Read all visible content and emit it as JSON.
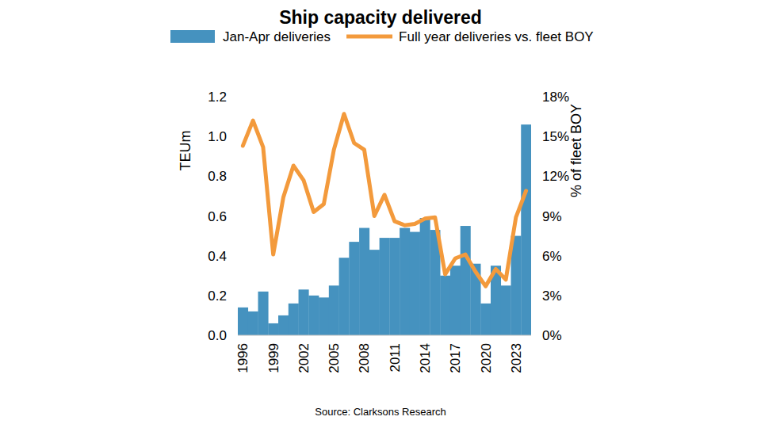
{
  "chart_data": {
    "type": "bar",
    "title": "Ship capacity delivered",
    "y_label": "TEUm",
    "y2_label": "% of fleet BOY",
    "source": "Source: Clarksons Research",
    "legend": "top",
    "grid": false,
    "categories": [
      "1996",
      null,
      null,
      "1999",
      null,
      null,
      "2002",
      null,
      null,
      "2005",
      null,
      null,
      "2008",
      null,
      null,
      "2011",
      null,
      null,
      "2014",
      null,
      null,
      "2017",
      null,
      null,
      "2020",
      null,
      null,
      "2023",
      null
    ],
    "series": [
      {
        "name": "Jan-Apr deliveries",
        "type": "bar",
        "color": "#4592bf",
        "values": [
          0.14,
          0.12,
          0.22,
          0.06,
          0.1,
          0.16,
          0.23,
          0.2,
          0.19,
          0.25,
          0.39,
          0.47,
          0.54,
          0.43,
          0.49,
          0.49,
          0.54,
          0.52,
          0.59,
          0.53,
          0.3,
          0.35,
          0.55,
          0.36,
          0.16,
          0.35,
          0.25,
          0.5,
          1.06
        ]
      },
      {
        "name": "Full year deliveries vs. fleet BOY",
        "type": "line",
        "axis": "y2",
        "color": "#f39a3c",
        "values": [
          14.3,
          16.2,
          14.2,
          6.1,
          10.4,
          12.8,
          11.7,
          9.3,
          9.9,
          14.0,
          16.7,
          14.5,
          14.0,
          9.0,
          10.6,
          8.6,
          8.3,
          8.4,
          8.8,
          8.9,
          4.6,
          5.8,
          6.1,
          4.8,
          3.7,
          5.0,
          4.2,
          8.9,
          10.9
        ]
      }
    ],
    "ylim": [
      0,
      1.2
    ],
    "yticks": [
      {
        "value": 0,
        "label": "0.0"
      },
      0.2,
      0.4,
      0.6,
      0.8,
      {
        "value": 1,
        "label": "1.0"
      },
      1.2
    ],
    "y2lim": [
      0,
      18
    ],
    "y2ticks": [
      {
        "value": 0,
        "label": "0%"
      },
      {
        "value": 3,
        "label": "3%"
      },
      {
        "value": 6,
        "label": "6%"
      },
      {
        "value": 9,
        "label": "9%"
      },
      {
        "value": 12,
        "label": "12%"
      },
      {
        "value": 15,
        "label": "15%"
      },
      {
        "value": 18,
        "label": "18%"
      }
    ]
  }
}
